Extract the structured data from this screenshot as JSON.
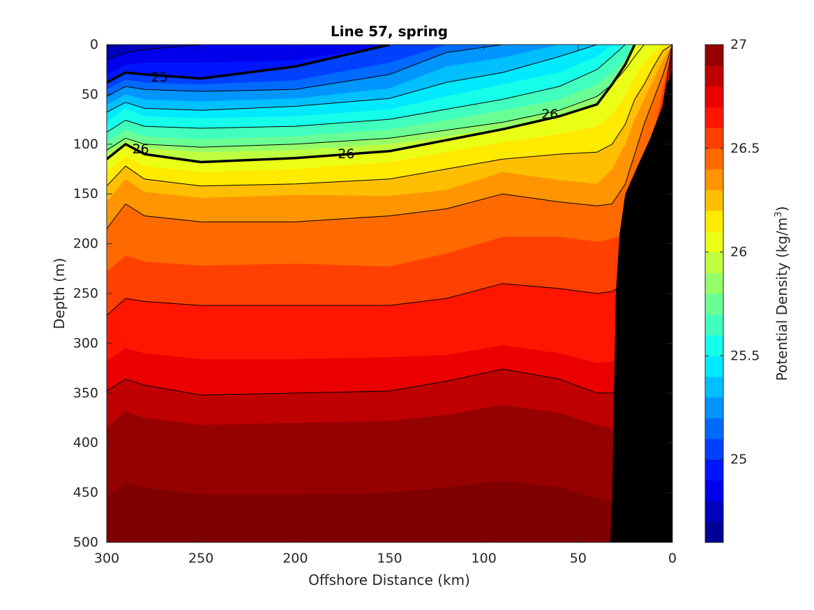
{
  "chart_data": {
    "type": "heatmap",
    "subtype": "filled-contour section",
    "title": "Line 57, spring",
    "xlabel": "Offshore Distance (km)",
    "ylabel": "Depth (m)",
    "colorbar_label": "Potential Density (kg/m",
    "colorbar_label_sup": "3",
    "colorbar_label_end": ")",
    "xlim": [
      300,
      0
    ],
    "x_reversed": true,
    "ylim": [
      0,
      500
    ],
    "y_reversed": true,
    "xticks": [
      300,
      250,
      200,
      150,
      100,
      50,
      0
    ],
    "yticks": [
      0,
      50,
      100,
      150,
      200,
      250,
      300,
      350,
      400,
      450,
      500
    ],
    "colorbar_range": [
      24.6,
      27.0
    ],
    "colorbar_step": 0.1,
    "colorbar_ticks": [
      25,
      25.5,
      26,
      26.5,
      27
    ],
    "colormap": "jet",
    "grid": false,
    "legend": "colorbar-right",
    "contour_labels": [
      {
        "level": "25",
        "x": 272,
        "d": 33
      },
      {
        "level": "26",
        "x": 282,
        "d": 105
      },
      {
        "level": "26",
        "x": 173,
        "d": 110
      },
      {
        "level": "26",
        "x": 65,
        "d": 70
      }
    ],
    "x_distance_km": [
      300,
      290,
      280,
      250,
      200,
      150,
      120,
      90,
      60,
      40,
      32,
      25,
      20,
      15,
      10,
      5,
      0
    ],
    "isopycnal_depths_m": [
      {
        "sigma": 24.7,
        "depths": [
          5,
          0,
          0,
          null,
          null,
          null,
          null,
          null,
          null,
          null,
          null,
          null,
          null,
          null,
          null,
          null,
          null
        ]
      },
      {
        "sigma": 24.8,
        "depths": [
          15,
          8,
          5,
          0,
          0,
          null,
          null,
          null,
          null,
          null,
          null,
          null,
          null,
          null,
          null,
          null,
          null
        ]
      },
      {
        "sigma": 24.9,
        "depths": [
          30,
          20,
          18,
          18,
          16,
          0,
          null,
          null,
          null,
          null,
          null,
          null,
          null,
          null,
          null,
          null,
          null
        ]
      },
      {
        "sigma": 25.0,
        "depths": [
          38,
          28,
          30,
          34,
          22,
          0,
          null,
          null,
          null,
          null,
          null,
          null,
          null,
          null,
          null,
          null,
          null
        ]
      },
      {
        "sigma": 25.1,
        "depths": [
          45,
          35,
          38,
          40,
          36,
          18,
          0,
          null,
          null,
          null,
          null,
          null,
          null,
          null,
          null,
          null,
          null
        ]
      },
      {
        "sigma": 25.2,
        "depths": [
          52,
          42,
          45,
          47,
          45,
          30,
          8,
          0,
          null,
          null,
          null,
          null,
          null,
          null,
          null,
          null,
          null
        ]
      },
      {
        "sigma": 25.3,
        "depths": [
          60,
          50,
          55,
          57,
          54,
          44,
          22,
          13,
          0,
          null,
          null,
          null,
          null,
          null,
          null,
          null,
          null
        ]
      },
      {
        "sigma": 25.4,
        "depths": [
          68,
          58,
          64,
          66,
          62,
          54,
          38,
          28,
          12,
          0,
          null,
          null,
          null,
          null,
          null,
          null,
          null
        ]
      },
      {
        "sigma": 25.5,
        "depths": [
          78,
          64,
          72,
          74,
          72,
          65,
          52,
          40,
          28,
          12,
          0,
          null,
          null,
          null,
          null,
          null,
          null
        ]
      },
      {
        "sigma": 25.6,
        "depths": [
          88,
          76,
          82,
          84,
          82,
          75,
          65,
          55,
          42,
          25,
          12,
          0,
          null,
          null,
          null,
          null,
          null
        ]
      },
      {
        "sigma": 25.7,
        "depths": [
          98,
          86,
          92,
          95,
          92,
          85,
          76,
          66,
          55,
          40,
          28,
          15,
          0,
          null,
          null,
          null,
          null
        ]
      },
      {
        "sigma": 25.8,
        "depths": [
          106,
          94,
          100,
          103,
          100,
          94,
          86,
          78,
          66,
          52,
          40,
          25,
          12,
          0,
          null,
          null,
          null
        ]
      },
      {
        "sigma": 25.9,
        "depths": [
          110,
          98,
          104,
          108,
          106,
          100,
          92,
          84,
          74,
          62,
          50,
          35,
          22,
          10,
          0,
          null,
          null
        ]
      },
      {
        "sigma": 26.0,
        "depths": [
          115,
          100,
          110,
          118,
          114,
          107,
          96,
          85,
          72,
          60,
          40,
          20,
          0,
          null,
          null,
          null,
          null
        ]
      },
      {
        "sigma": 26.1,
        "depths": [
          128,
          112,
          122,
          128,
          125,
          118,
          108,
          98,
          90,
          82,
          70,
          52,
          32,
          18,
          8,
          0,
          null
        ]
      },
      {
        "sigma": 26.2,
        "depths": [
          142,
          122,
          135,
          142,
          140,
          135,
          125,
          115,
          110,
          108,
          100,
          80,
          55,
          40,
          22,
          6,
          0
        ]
      },
      {
        "sigma": 26.3,
        "depths": [
          158,
          135,
          148,
          154,
          151,
          152,
          146,
          128,
          136,
          140,
          125,
          100,
          75,
          55,
          35,
          15,
          0
        ]
      },
      {
        "sigma": 26.4,
        "depths": [
          185,
          160,
          172,
          178,
          178,
          172,
          165,
          150,
          158,
          162,
          160,
          140,
          110,
          80,
          55,
          30,
          0
        ]
      },
      {
        "sigma": 26.5,
        "depths": [
          228,
          212,
          218,
          222,
          220,
          223,
          210,
          193,
          193,
          198,
          195,
          190,
          175,
          140,
          90,
          45,
          0
        ]
      },
      {
        "sigma": 26.6,
        "depths": [
          272,
          255,
          258,
          262,
          262,
          262,
          255,
          240,
          245,
          250,
          248,
          240,
          220,
          180,
          120,
          60,
          0
        ]
      },
      {
        "sigma": 26.7,
        "depths": [
          318,
          305,
          310,
          316,
          316,
          314,
          312,
          302,
          310,
          320,
          318,
          310,
          290,
          240,
          160,
          80,
          0
        ]
      },
      {
        "sigma": 26.8,
        "depths": [
          348,
          336,
          342,
          352,
          350,
          348,
          338,
          326,
          336,
          350,
          350,
          340,
          320,
          280,
          200,
          100,
          0
        ]
      },
      {
        "sigma": 26.9,
        "depths": [
          385,
          368,
          375,
          382,
          380,
          378,
          372,
          362,
          370,
          382,
          385,
          380,
          360,
          320,
          250,
          130,
          0
        ]
      },
      {
        "sigma": 27.0,
        "depths": [
          455,
          440,
          445,
          452,
          452,
          450,
          445,
          438,
          445,
          455,
          460,
          455,
          420,
          380,
          300,
          160,
          0
        ]
      }
    ],
    "bathymetry_km_depth": [
      [
        33,
        500
      ],
      [
        32,
        460
      ],
      [
        31,
        350
      ],
      [
        30,
        250
      ],
      [
        28,
        190
      ],
      [
        25,
        150
      ],
      [
        18,
        120
      ],
      [
        12,
        95
      ],
      [
        8,
        75
      ],
      [
        5,
        60
      ],
      [
        3,
        40
      ],
      [
        1,
        30
      ],
      [
        0,
        25
      ],
      [
        0,
        500
      ]
    ],
    "bathymetry_color": "#000000",
    "contour_line_levels": [
      24.8,
      25.2,
      25.4,
      25.6,
      25.8,
      26.2,
      26.4,
      26.6,
      26.8
    ],
    "bold_contour_levels": [
      25.0,
      26.0
    ]
  }
}
